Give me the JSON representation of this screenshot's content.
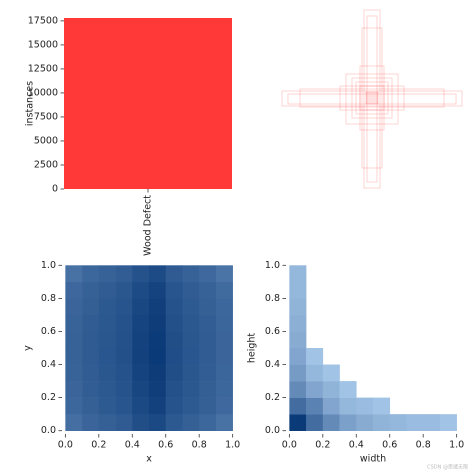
{
  "chart_data": [
    {
      "type": "bar",
      "categories": [
        "Wood Defect"
      ],
      "values": [
        17800
      ],
      "color": "#ff3838",
      "ylabel": "instances",
      "ylim": [
        0,
        17800
      ],
      "yticks": [
        0,
        2500,
        5000,
        7500,
        10000,
        12500,
        15000,
        17500
      ]
    },
    {
      "type": "heatmap",
      "xlabel": "x",
      "ylabel": "y",
      "color_low": "#b3d3f2",
      "color_high": "#0b3a78",
      "xbins": [
        0,
        0.1,
        0.2,
        0.3,
        0.4,
        0.5,
        0.6,
        0.7,
        0.8,
        0.9,
        1.0
      ],
      "ybins": [
        0,
        0.1,
        0.2,
        0.3,
        0.4,
        0.5,
        0.6,
        0.7,
        0.8,
        0.9,
        1.0
      ],
      "values": [
        [
          38,
          46,
          50,
          54,
          66,
          72,
          56,
          50,
          44,
          36
        ],
        [
          44,
          50,
          55,
          60,
          72,
          80,
          62,
          55,
          50,
          42
        ],
        [
          46,
          52,
          56,
          62,
          75,
          84,
          64,
          57,
          51,
          44
        ],
        [
          47,
          53,
          58,
          63,
          78,
          86,
          66,
          58,
          52,
          45
        ],
        [
          48,
          54,
          59,
          65,
          80,
          88,
          67,
          59,
          53,
          46
        ],
        [
          48,
          54,
          58,
          64,
          79,
          87,
          66,
          58,
          53,
          46
        ],
        [
          47,
          53,
          57,
          63,
          77,
          85,
          65,
          57,
          52,
          45
        ],
        [
          46,
          51,
          56,
          61,
          74,
          82,
          63,
          55,
          50,
          44
        ],
        [
          43,
          49,
          53,
          58,
          70,
          78,
          60,
          53,
          48,
          41
        ],
        [
          36,
          44,
          48,
          52,
          63,
          70,
          54,
          48,
          42,
          34
        ]
      ],
      "xlim": [
        -0.02,
        1.02
      ],
      "ylim": [
        -0.02,
        1.02
      ],
      "xticks": [
        {
          "value": 0,
          "label": "0.0"
        },
        0.2,
        0.4,
        0.6,
        0.8,
        {
          "value": 1,
          "label": "1.0"
        }
      ],
      "yticks": [
        {
          "value": 0,
          "label": "0.0"
        },
        0.2,
        0.4,
        0.6,
        0.8,
        {
          "value": 1,
          "label": "1.0"
        }
      ]
    },
    {
      "type": "heatmap",
      "xlabel": "width",
      "ylabel": "height",
      "color_low": "#b3d3f2",
      "color_high": "#0b3a78",
      "xbins": [
        0,
        0.1,
        0.2,
        0.3,
        0.4,
        0.5,
        0.6,
        0.7,
        0.8,
        0.9,
        1.0
      ],
      "ybins": [
        0,
        0.1,
        0.2,
        0.3,
        0.4,
        0.5,
        0.6,
        0.7,
        0.8,
        0.9,
        1.0
      ],
      "values": [
        [
          90,
          40,
          20,
          10,
          6,
          4,
          3,
          2,
          2,
          1
        ],
        [
          40,
          25,
          8,
          3,
          2,
          1,
          0,
          0,
          0,
          0
        ],
        [
          20,
          8,
          4,
          1,
          0,
          0,
          0,
          0,
          0,
          0
        ],
        [
          12,
          3,
          1,
          0,
          0,
          0,
          0,
          0,
          0,
          0
        ],
        [
          8,
          1,
          0,
          0,
          0,
          0,
          0,
          0,
          0,
          0
        ],
        [
          6,
          0,
          0,
          0,
          0,
          0,
          0,
          0,
          0,
          0
        ],
        [
          5,
          0,
          0,
          0,
          0,
          0,
          0,
          0,
          0,
          0
        ],
        [
          4,
          0,
          0,
          0,
          0,
          0,
          0,
          0,
          0,
          0
        ],
        [
          3,
          0,
          0,
          0,
          0,
          0,
          0,
          0,
          0,
          0
        ],
        [
          3,
          0,
          0,
          0,
          0,
          0,
          0,
          0,
          0,
          0
        ]
      ],
      "xlim": [
        -0.02,
        1.02
      ],
      "ylim": [
        -0.02,
        1.02
      ],
      "xticks": [
        {
          "value": 0,
          "label": "0.0"
        },
        0.2,
        0.4,
        0.6,
        0.8,
        {
          "value": 1,
          "label": "1.0"
        }
      ],
      "yticks": [
        {
          "value": 0,
          "label": "0.0"
        },
        0.2,
        0.4,
        0.6,
        0.8,
        {
          "value": 1,
          "label": "1.0"
        }
      ]
    }
  ],
  "watermark": "CSDN @思绪无限"
}
